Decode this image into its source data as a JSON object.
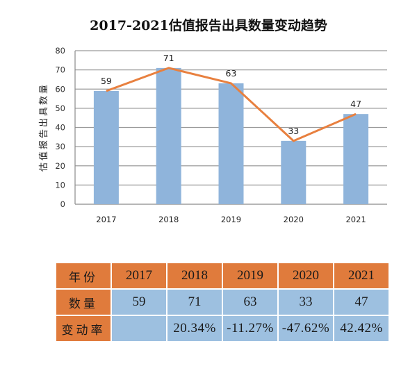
{
  "title": "2017-2021估值报告出具数量变动趋势",
  "chart_data": {
    "type": "bar",
    "title": "2017-2021估值报告出具数量变动趋势",
    "categories": [
      "2017",
      "2018",
      "2019",
      "2020",
      "2021"
    ],
    "series": [
      {
        "name": "估值报告出具数量",
        "type": "bar",
        "values": [
          59,
          71,
          63,
          33,
          47
        ],
        "color": "#8fb4db"
      },
      {
        "name": "趋势",
        "type": "line",
        "values": [
          59,
          71,
          63,
          33,
          47
        ],
        "color": "#e8803f"
      }
    ],
    "data_labels": [
      "59",
      "71",
      "63",
      "33",
      "47"
    ],
    "xlabel": "",
    "ylabel": "估值报告出具数量",
    "ylim": [
      0,
      80
    ],
    "yticks": [
      "0",
      "10",
      "20",
      "30",
      "40",
      "50",
      "60",
      "70",
      "80"
    ],
    "grid": true,
    "legend": "none"
  },
  "table": {
    "rows": [
      {
        "label": "年份",
        "cells": [
          "2017",
          "2018",
          "2019",
          "2020",
          "2021"
        ]
      },
      {
        "label": "数量",
        "cells": [
          "59",
          "71",
          "63",
          "33",
          "47"
        ]
      },
      {
        "label": "变动率",
        "cells": [
          "",
          "20.34%",
          "-11.27%",
          "-47.62%",
          "42.42%"
        ]
      }
    ]
  },
  "colors": {
    "bar": "#8fb4db",
    "line": "#e8803f",
    "table_header": "#e07b3c",
    "table_body": "#9dc0e0",
    "grid": "#9a9a9a"
  }
}
